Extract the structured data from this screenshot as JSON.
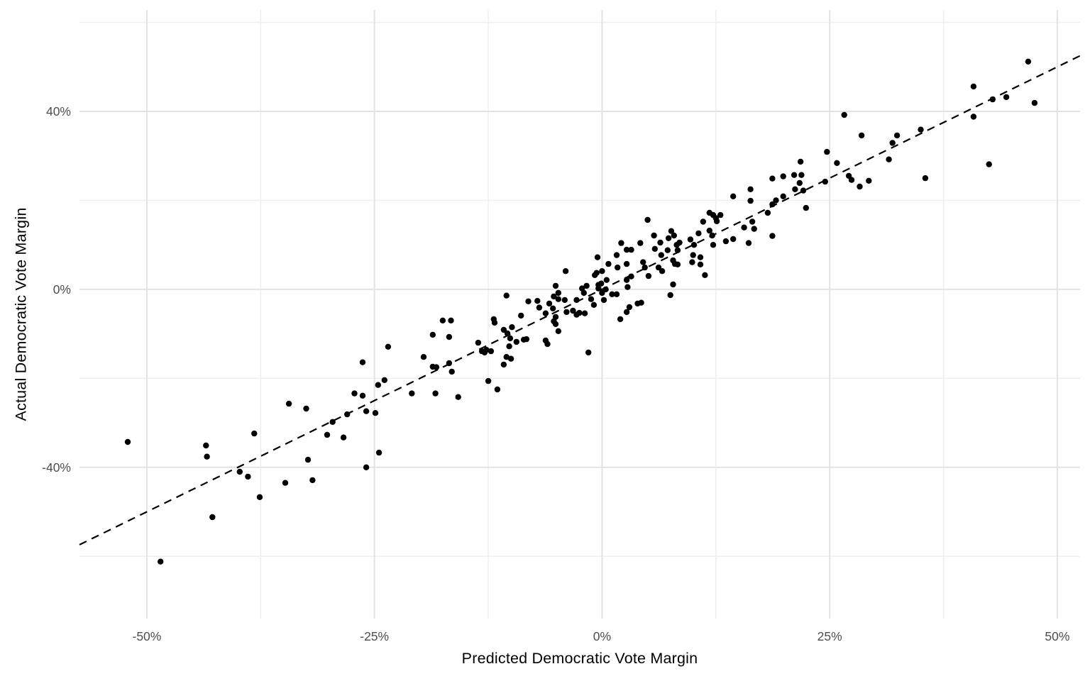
{
  "figure": {
    "background": "#FFFFFF"
  },
  "chart_data": {
    "type": "scatter",
    "title": "",
    "xlabel": "Predicted Democratic Vote Margin",
    "ylabel": "Actual Democratic Vote Margin",
    "x_tick_values": [
      -50,
      -25,
      0,
      25,
      50
    ],
    "x_tick_labels": [
      "-50%",
      "-25%",
      "0%",
      "25%",
      "50%"
    ],
    "x_minor_tick_values": [
      -37.5,
      -12.5,
      12.5,
      37.5
    ],
    "y_tick_values": [
      -40,
      0,
      40
    ],
    "y_tick_labels": [
      "-40%",
      "0%",
      "40%"
    ],
    "y_minor_tick_values": [
      -60,
      -20,
      20,
      60
    ],
    "xlim": [
      -57.4,
      52.5
    ],
    "ylim": [
      -74.0,
      62.8
    ],
    "grid": true,
    "legend_position": "none",
    "reference_line": {
      "description": "dashed identity line y = x",
      "slope": 1,
      "intercept": 0,
      "style": "dashed",
      "color": "#000000"
    },
    "point_color": "#000000",
    "point_radius": 4.2,
    "grid_major_color": "#E3E3E3",
    "grid_minor_color": "#EFEFEF",
    "tick_label_color": "#4D4D4D",
    "axis_title_color": "#000000",
    "points": [
      [
        46.8,
        51.2
      ],
      [
        40.8,
        45.6
      ],
      [
        42.9,
        42.7
      ],
      [
        44.4,
        43.2
      ],
      [
        47.5,
        41.9
      ],
      [
        40.8,
        38.8
      ],
      [
        26.6,
        39.2
      ],
      [
        35.0,
        35.9
      ],
      [
        28.5,
        34.6
      ],
      [
        32.4,
        34.6
      ],
      [
        31.9,
        32.9
      ],
      [
        24.7,
        30.9
      ],
      [
        21.8,
        28.7
      ],
      [
        25.8,
        28.4
      ],
      [
        31.5,
        29.2
      ],
      [
        42.5,
        28.1
      ],
      [
        35.5,
        25.0
      ],
      [
        19.9,
        25.4
      ],
      [
        21.1,
        25.7
      ],
      [
        21.9,
        25.7
      ],
      [
        21.7,
        23.9
      ],
      [
        21.2,
        22.5
      ],
      [
        22.1,
        22.2
      ],
      [
        24.5,
        24.2
      ],
      [
        27.1,
        25.5
      ],
      [
        27.4,
        24.6
      ],
      [
        28.3,
        23.1
      ],
      [
        29.3,
        24.4
      ],
      [
        18.7,
        24.9
      ],
      [
        16.3,
        22.5
      ],
      [
        14.4,
        20.9
      ],
      [
        16.3,
        19.9
      ],
      [
        18.7,
        19.1
      ],
      [
        19.1,
        20.0
      ],
      [
        19.9,
        20.9
      ],
      [
        18.2,
        17.2
      ],
      [
        22.4,
        18.3
      ],
      [
        13.0,
        16.7
      ],
      [
        11.8,
        17.2
      ],
      [
        12.6,
        15.3
      ],
      [
        13.6,
        10.8
      ],
      [
        14.4,
        11.3
      ],
      [
        15.6,
        13.9
      ],
      [
        16.5,
        15.2
      ],
      [
        16.7,
        13.6
      ],
      [
        16.1,
        10.4
      ],
      [
        18.7,
        12.0
      ],
      [
        5.0,
        15.6
      ],
      [
        3.2,
        8.9
      ],
      [
        4.2,
        10.4
      ],
      [
        5.7,
        12.1
      ],
      [
        5.8,
        9.1
      ],
      [
        6.4,
        10.5
      ],
      [
        6.5,
        7.7
      ],
      [
        7.2,
        8.8
      ],
      [
        7.3,
        11.5
      ],
      [
        7.6,
        13.1
      ],
      [
        7.9,
        12.1
      ],
      [
        8.2,
        10.0
      ],
      [
        8.3,
        8.8
      ],
      [
        8.5,
        10.5
      ],
      [
        9.7,
        11.2
      ],
      [
        10.1,
        10.0
      ],
      [
        10.6,
        12.6
      ],
      [
        11.8,
        13.2
      ],
      [
        12.1,
        12.1
      ],
      [
        12.2,
        10.0
      ],
      [
        11.1,
        15.2
      ],
      [
        12.2,
        16.7
      ],
      [
        12.5,
        16.0
      ],
      [
        2.7,
        5.7
      ],
      [
        4.5,
        6.1
      ],
      [
        4.7,
        4.9
      ],
      [
        5.1,
        3.0
      ],
      [
        6.2,
        4.9
      ],
      [
        7.8,
        6.5
      ],
      [
        8.0,
        5.7
      ],
      [
        8.3,
        5.6
      ],
      [
        9.9,
        6.1
      ],
      [
        10.8,
        7.2
      ],
      [
        10.8,
        5.6
      ],
      [
        11.3,
        3.2
      ],
      [
        7.8,
        1.1
      ],
      [
        7.5,
        -1.3
      ],
      [
        4.3,
        -3.0
      ],
      [
        6.6,
        4.1
      ],
      [
        10.0,
        7.7
      ],
      [
        -4.0,
        4.1
      ],
      [
        -10.5,
        -1.4
      ],
      [
        -8.1,
        -2.7
      ],
      [
        -7.1,
        -2.6
      ],
      [
        -6.9,
        -4.1
      ],
      [
        -5.8,
        -3.2
      ],
      [
        -5.1,
        0.8
      ],
      [
        -4.8,
        -0.8
      ],
      [
        -4.8,
        -2.2
      ],
      [
        -4.1,
        -2.4
      ],
      [
        -3.9,
        -5.1
      ],
      [
        -6.2,
        -5.4
      ],
      [
        -5.4,
        -4.3
      ],
      [
        -5.1,
        -6.2
      ],
      [
        -5.3,
        -7.2
      ],
      [
        -5.1,
        -7.8
      ],
      [
        -4.8,
        -9.4
      ],
      [
        -8.9,
        -5.9
      ],
      [
        -11.9,
        -6.7
      ],
      [
        -11.8,
        -7.5
      ],
      [
        -10.8,
        -9.1
      ],
      [
        -10.4,
        -9.9
      ],
      [
        -9.9,
        -8.5
      ],
      [
        -10.1,
        -11.0
      ],
      [
        -9.4,
        -11.8
      ],
      [
        -8.3,
        -11.2
      ],
      [
        -10.2,
        -12.8
      ],
      [
        -12.2,
        -13.9
      ],
      [
        -12.9,
        -14.2
      ],
      [
        -10.5,
        -15.2
      ],
      [
        -10.0,
        -15.6
      ],
      [
        -10.8,
        -16.9
      ],
      [
        -6.2,
        -11.5
      ],
      [
        -6.0,
        -12.3
      ],
      [
        -1.5,
        -14.2
      ],
      [
        -2.8,
        -2.4
      ],
      [
        -2.5,
        -5.3
      ],
      [
        -1.9,
        -5.4
      ],
      [
        -2.0,
        -0.8
      ],
      [
        -1.7,
        0.8
      ],
      [
        -1.2,
        -2.2
      ],
      [
        -0.9,
        -3.5
      ],
      [
        -0.4,
        1.0
      ],
      [
        0.0,
        -0.8
      ],
      [
        0.2,
        -2.4
      ],
      [
        0.5,
        2.1
      ],
      [
        1.1,
        -1.1
      ],
      [
        1.6,
        -1.1
      ],
      [
        2.0,
        -6.7
      ],
      [
        2.7,
        -5.1
      ],
      [
        3.0,
        -4.0
      ],
      [
        3.9,
        -3.2
      ],
      [
        2.8,
        0.5
      ],
      [
        3.2,
        2.9
      ],
      [
        2.7,
        2.1
      ],
      [
        1.7,
        4.9
      ],
      [
        -0.6,
        3.7
      ],
      [
        0.7,
        5.7
      ],
      [
        2.1,
        10.4
      ],
      [
        2.7,
        8.9
      ],
      [
        1.6,
        7.7
      ],
      [
        0.0,
        4.1
      ],
      [
        -0.5,
        7.2
      ],
      [
        -0.8,
        3.2
      ],
      [
        -0.1,
        1.3
      ],
      [
        -0.4,
        0.2
      ],
      [
        0.4,
        0.0
      ],
      [
        -2.2,
        0.2
      ],
      [
        -3.2,
        -4.8
      ],
      [
        -2.8,
        -5.7
      ],
      [
        -5.3,
        -1.6
      ],
      [
        -8.6,
        -11.3
      ],
      [
        -18.6,
        -10.2
      ],
      [
        -17.5,
        -7.0
      ],
      [
        -16.6,
        -7.0
      ],
      [
        -16.8,
        -10.7
      ],
      [
        -18.6,
        -17.4
      ],
      [
        -18.2,
        -17.5
      ],
      [
        -16.8,
        -16.6
      ],
      [
        -16.5,
        -18.5
      ],
      [
        -18.3,
        -23.4
      ],
      [
        -15.8,
        -24.2
      ],
      [
        -12.5,
        -20.6
      ],
      [
        -11.5,
        -22.5
      ],
      [
        -13.6,
        -12.0
      ],
      [
        -13.2,
        -13.9
      ],
      [
        -12.7,
        -13.6
      ],
      [
        -34.4,
        -25.7
      ],
      [
        -32.5,
        -26.8
      ],
      [
        -29.6,
        -29.8
      ],
      [
        -28.0,
        -28.1
      ],
      [
        -27.2,
        -23.4
      ],
      [
        -26.3,
        -23.9
      ],
      [
        -25.9,
        -27.4
      ],
      [
        -24.9,
        -27.8
      ],
      [
        -24.6,
        -21.5
      ],
      [
        -23.9,
        -20.4
      ],
      [
        -23.5,
        -12.9
      ],
      [
        -26.3,
        -16.4
      ],
      [
        -20.9,
        -23.4
      ],
      [
        -19.6,
        -15.2
      ],
      [
        -52.1,
        -34.3
      ],
      [
        -43.5,
        -35.1
      ],
      [
        -43.4,
        -37.6
      ],
      [
        -38.2,
        -32.4
      ],
      [
        -39.8,
        -41.0
      ],
      [
        -38.9,
        -42.1
      ],
      [
        -37.6,
        -46.7
      ],
      [
        -34.8,
        -43.5
      ],
      [
        -31.8,
        -42.9
      ],
      [
        -32.3,
        -38.3
      ],
      [
        -30.2,
        -32.7
      ],
      [
        -28.4,
        -33.3
      ],
      [
        -25.9,
        -40.0
      ],
      [
        -24.5,
        -36.7
      ],
      [
        -42.8,
        -51.2
      ],
      [
        -48.5,
        -61.2
      ]
    ]
  }
}
